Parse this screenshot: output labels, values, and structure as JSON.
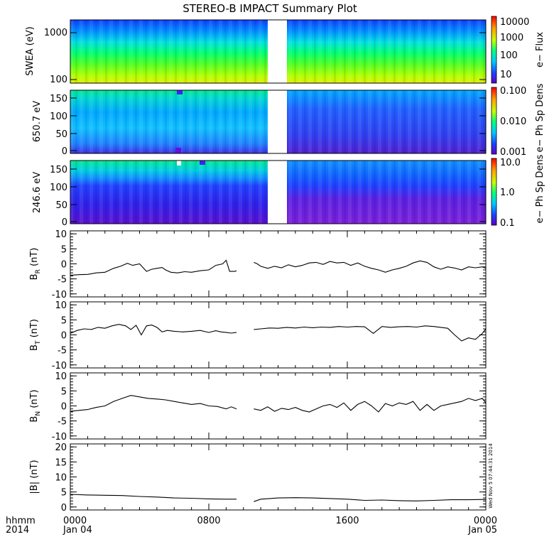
{
  "title": "STEREO-B IMPACT Summary Plot",
  "timestamp": "Wed Nov  5 07:44:31 2014",
  "x_axis": {
    "row1": [
      "hhmm",
      "0000",
      "0800",
      "1600",
      "0000"
    ],
    "row2": [
      "2014",
      "Jan 04",
      "",
      "",
      "Jan 05"
    ],
    "hours_range": [
      0,
      24
    ],
    "tick_hours": [
      0,
      8,
      16,
      24
    ],
    "data_gap_hours": [
      9.6,
      10.6
    ]
  },
  "colors": {
    "line": "#000000",
    "frame": "#000000",
    "gap": "#ffffff",
    "colormap": [
      "#5a00c8",
      "#2040ff",
      "#00c8ff",
      "#00ff80",
      "#c8ff00",
      "#ffa000",
      "#ff0000"
    ]
  },
  "spectrograms": [
    {
      "id": "swea",
      "ylabel": "SWEA (eV)",
      "yticks": [
        "1000",
        "100"
      ],
      "cbar_label": "e− Flux",
      "cbar_ticks": [
        "10000",
        "1000",
        "100",
        "10"
      ],
      "note": "energy-time spectrogram, log energy 100–1500 eV"
    },
    {
      "id": "pad650",
      "ylabel": "650.7 eV",
      "yticks": [
        "150",
        "100",
        "50",
        "0"
      ],
      "cbar_label": "e− Ph Sp Dens",
      "cbar_ticks": [
        "0.100",
        "0.010",
        "0.001"
      ],
      "note": "pitch angle distribution 0–180 deg"
    },
    {
      "id": "pad246",
      "ylabel": "246.6 eV",
      "yticks": [
        "150",
        "100",
        "50",
        "0"
      ],
      "cbar_label": "e− Ph Sp Dens",
      "cbar_ticks": [
        "10.0",
        "1.0",
        "0.1"
      ],
      "note": "pitch angle distribution 0–180 deg"
    }
  ],
  "chart_data": [
    {
      "type": "line",
      "panel": "BR",
      "ylabel": "BR (nT)",
      "ylabel_main": "B",
      "ylabel_sub": "R",
      "ylabel_unit": "(nT)",
      "ylim": [
        -11,
        11
      ],
      "yticks": [
        10,
        5,
        0,
        -5,
        -10
      ],
      "series": [
        {
          "x": [
            0,
            0.5,
            1,
            1.5,
            2,
            2.5,
            2.9,
            3.3,
            3.6,
            4.0,
            4.4,
            4.7,
            5.0,
            5.3,
            5.5,
            5.8,
            6.2,
            6.6,
            7.0,
            7.5,
            8.0,
            8.4,
            8.8,
            9.0,
            9.2,
            9.5,
            9.6,
            10.6,
            10.8,
            11.0,
            11.4,
            11.8,
            12.2,
            12.6,
            13.0,
            13.4,
            13.8,
            14.2,
            14.6,
            15.0,
            15.4,
            15.8,
            16.2,
            16.6,
            17.0,
            17.4,
            17.8,
            18.2,
            18.6,
            19.0,
            19.4,
            19.8,
            20.2,
            20.6,
            21.0,
            21.4,
            21.8,
            22.2,
            22.6,
            23.0,
            23.4,
            23.8,
            24.0
          ],
          "y": [
            -3.8,
            -3.6,
            -3.5,
            -3.0,
            -2.8,
            -1.5,
            -0.8,
            0.2,
            -0.5,
            0.0,
            -2.5,
            -1.8,
            -1.5,
            -1.2,
            -2.0,
            -2.8,
            -3.0,
            -2.6,
            -2.8,
            -2.3,
            -2.0,
            -0.5,
            0.0,
            1.2,
            -2.5,
            -2.5,
            -2.3,
            0.5,
            0.0,
            -0.8,
            -1.5,
            -0.8,
            -1.3,
            -0.3,
            -1.0,
            -0.5,
            0.3,
            0.5,
            -0.2,
            0.8,
            0.3,
            0.5,
            -0.5,
            0.3,
            -0.8,
            -1.5,
            -2.0,
            -2.8,
            -2.0,
            -1.5,
            -0.8,
            0.3,
            1.0,
            0.5,
            -1.0,
            -1.8,
            -1.0,
            -1.4,
            -2.0,
            -1.0,
            -1.3,
            -1.0,
            -1.5
          ]
        }
      ]
    },
    {
      "type": "line",
      "panel": "BT",
      "ylabel": "BT (nT)",
      "ylabel_main": "B",
      "ylabel_sub": "T",
      "ylabel_unit": "(nT)",
      "ylim": [
        -11,
        11
      ],
      "yticks": [
        10,
        5,
        0,
        -5,
        -10
      ],
      "series": [
        {
          "x": [
            0,
            0.4,
            0.8,
            1.2,
            1.6,
            2.0,
            2.4,
            2.8,
            3.2,
            3.5,
            3.8,
            4.1,
            4.4,
            4.7,
            5.0,
            5.3,
            5.6,
            6.0,
            6.5,
            7.0,
            7.5,
            8.0,
            8.4,
            8.7,
            9.0,
            9.3,
            9.6,
            10.6,
            11.0,
            11.5,
            12.0,
            12.5,
            13.0,
            13.5,
            14.0,
            14.5,
            15.0,
            15.5,
            16.0,
            16.5,
            17.0,
            17.5,
            18.0,
            18.5,
            19.0,
            19.5,
            20.0,
            20.5,
            21.0,
            21.4,
            21.8,
            22.2,
            22.6,
            23.0,
            23.4,
            23.8,
            24.0
          ],
          "y": [
            0.5,
            1.5,
            2.0,
            1.8,
            2.5,
            2.2,
            3.0,
            3.5,
            3.0,
            1.8,
            3.2,
            0.0,
            3.0,
            3.3,
            2.5,
            1.0,
            1.5,
            1.2,
            1.0,
            1.2,
            1.5,
            0.8,
            1.4,
            1.0,
            0.8,
            0.6,
            0.8,
            1.8,
            2.0,
            2.3,
            2.2,
            2.5,
            2.3,
            2.6,
            2.4,
            2.6,
            2.5,
            2.8,
            2.6,
            2.8,
            2.7,
            0.5,
            2.8,
            2.5,
            2.7,
            2.8,
            2.6,
            3.0,
            2.8,
            2.5,
            2.2,
            0.0,
            -2.0,
            -1.0,
            -1.5,
            0.5,
            2.0
          ]
        }
      ]
    },
    {
      "type": "line",
      "panel": "BN",
      "ylabel": "BN (nT)",
      "ylabel_main": "B",
      "ylabel_sub": "N",
      "ylabel_unit": "(nT)",
      "ylim": [
        -11,
        11
      ],
      "yticks": [
        10,
        5,
        0,
        -5,
        -10
      ],
      "series": [
        {
          "x": [
            0,
            0.5,
            1.0,
            1.5,
            2.0,
            2.5,
            3.0,
            3.5,
            4.0,
            4.5,
            5.0,
            5.5,
            6.0,
            6.5,
            7.0,
            7.5,
            8.0,
            8.5,
            9.0,
            9.3,
            9.6,
            10.6,
            11.0,
            11.4,
            11.8,
            12.2,
            12.6,
            13.0,
            13.4,
            13.8,
            14.2,
            14.6,
            15.0,
            15.4,
            15.8,
            16.2,
            16.6,
            17.0,
            17.4,
            17.8,
            18.2,
            18.6,
            19.0,
            19.4,
            19.8,
            20.2,
            20.6,
            21.0,
            21.4,
            21.8,
            22.2,
            22.6,
            23.0,
            23.4,
            23.8,
            24.0
          ],
          "y": [
            -1.8,
            -1.5,
            -1.2,
            -0.5,
            0.0,
            1.5,
            2.5,
            3.5,
            3.0,
            2.5,
            2.3,
            2.0,
            1.5,
            1.0,
            0.5,
            0.8,
            0.0,
            -0.2,
            -1.0,
            -0.3,
            -1.0,
            -1.0,
            -1.5,
            -0.3,
            -1.8,
            -0.8,
            -1.2,
            -0.5,
            -1.5,
            -2.0,
            -1.0,
            0.0,
            0.5,
            -0.5,
            1.0,
            -1.5,
            0.5,
            1.5,
            0.0,
            -2.0,
            0.8,
            0.0,
            1.0,
            0.5,
            1.5,
            -1.5,
            0.5,
            -1.5,
            0.0,
            0.5,
            1.0,
            1.5,
            2.5,
            1.8,
            2.5,
            1.0
          ]
        }
      ]
    },
    {
      "type": "line",
      "panel": "Bmag",
      "ylabel": "|B| (nT)",
      "ylabel_main": "|B|",
      "ylabel_sub": "",
      "ylabel_unit": "(nT)",
      "ylim": [
        -1,
        21
      ],
      "yticks": [
        20,
        15,
        10,
        5,
        0
      ],
      "series": [
        {
          "x": [
            0,
            1,
            2,
            3,
            4,
            5,
            6,
            7,
            8,
            9,
            9.6,
            10.6,
            11,
            12,
            13,
            14,
            15,
            16,
            17,
            18,
            19,
            20,
            21,
            22,
            23,
            24
          ],
          "y": [
            4.2,
            4.0,
            3.9,
            3.8,
            3.5,
            3.3,
            3.0,
            2.9,
            2.7,
            2.6,
            2.6,
            1.8,
            2.6,
            3.0,
            3.1,
            3.0,
            2.8,
            2.6,
            2.2,
            2.3,
            2.1,
            2.0,
            2.2,
            2.4,
            2.4,
            2.5
          ]
        }
      ]
    }
  ]
}
